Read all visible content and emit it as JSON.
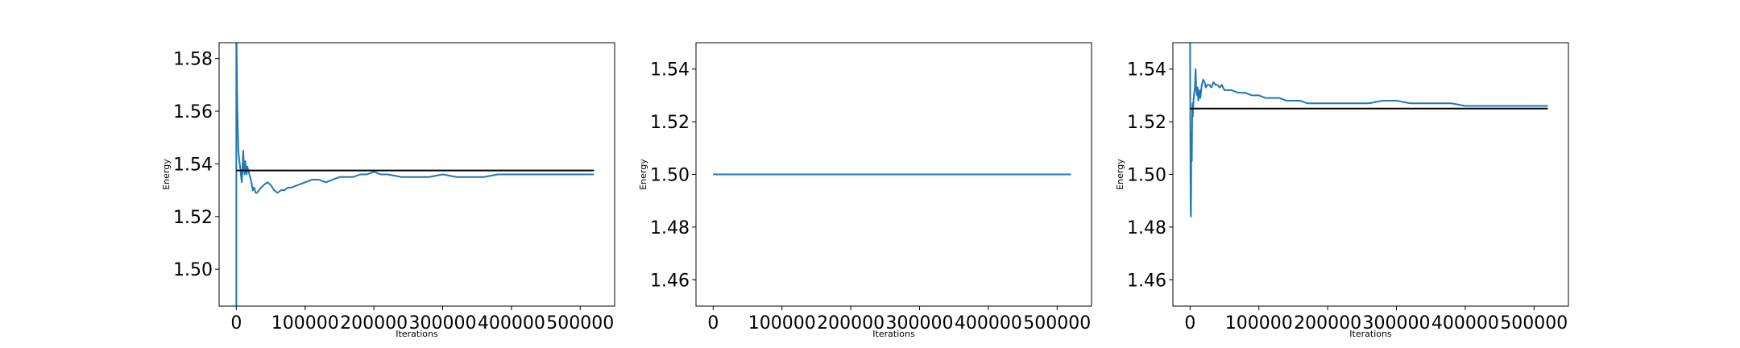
{
  "chart_data": [
    {
      "type": "line",
      "xlabel": "Iterations",
      "ylabel": "Energy",
      "xlim": [
        -25000,
        550000
      ],
      "ylim": [
        1.486,
        1.586
      ],
      "xticks": [
        0,
        100000,
        200000,
        300000,
        400000,
        500000
      ],
      "xtick_labels": [
        "0",
        "100000",
        "200000",
        "300000",
        "400000",
        "500000"
      ],
      "yticks": [
        1.5,
        1.52,
        1.54,
        1.56,
        1.58
      ],
      "ytick_labels": [
        "1.50",
        "1.52",
        "1.54",
        "1.56",
        "1.58"
      ],
      "grid": false,
      "series": [
        {
          "color": "#1f77b4",
          "x": [
            0,
            0,
            400,
            800,
            1200,
            1600,
            2000,
            2500,
            3000,
            4000,
            5000,
            6000,
            7000,
            8000,
            9000,
            10000,
            11000,
            12000,
            13000,
            14000,
            15000,
            16000,
            18000,
            20000,
            22000,
            24000,
            26000,
            28000,
            30000,
            33000,
            36000,
            40000,
            45000,
            50000,
            55000,
            60000,
            65000,
            70000,
            75000,
            80000,
            90000,
            100000,
            110000,
            120000,
            130000,
            140000,
            150000,
            160000,
            170000,
            180000,
            190000,
            200000,
            210000,
            220000,
            240000,
            260000,
            280000,
            300000,
            320000,
            340000,
            360000,
            380000,
            400000,
            420000,
            440000,
            460000,
            480000,
            500000,
            520000
          ],
          "y": [
            1.486,
            1.586,
            1.586,
            1.575,
            1.566,
            1.56,
            1.555,
            1.55,
            1.545,
            1.542,
            1.54,
            1.538,
            1.535,
            1.533,
            1.538,
            1.545,
            1.54,
            1.536,
            1.541,
            1.538,
            1.536,
            1.539,
            1.537,
            1.535,
            1.533,
            1.53,
            1.531,
            1.529,
            1.529,
            1.53,
            1.531,
            1.532,
            1.533,
            1.532,
            1.53,
            1.529,
            1.53,
            1.53,
            1.531,
            1.531,
            1.532,
            1.533,
            1.534,
            1.534,
            1.533,
            1.534,
            1.535,
            1.535,
            1.535,
            1.536,
            1.536,
            1.537,
            1.536,
            1.536,
            1.535,
            1.535,
            1.535,
            1.536,
            1.535,
            1.535,
            1.535,
            1.536,
            1.536,
            1.536,
            1.536,
            1.536,
            1.536,
            1.536,
            1.536
          ]
        },
        {
          "color": "#000000",
          "x": [
            0,
            520000
          ],
          "y": [
            1.5375,
            1.5375
          ]
        }
      ]
    },
    {
      "type": "line",
      "xlabel": "Iterations",
      "ylabel": "Energy",
      "xlim": [
        -25000,
        550000
      ],
      "ylim": [
        1.45,
        1.55
      ],
      "xticks": [
        0,
        100000,
        200000,
        300000,
        400000,
        500000
      ],
      "xtick_labels": [
        "0",
        "100000",
        "200000",
        "300000",
        "400000",
        "500000"
      ],
      "yticks": [
        1.46,
        1.48,
        1.5,
        1.52,
        1.54
      ],
      "ytick_labels": [
        "1.46",
        "1.48",
        "1.50",
        "1.52",
        "1.54"
      ],
      "grid": false,
      "series": [
        {
          "color": "#000000",
          "x": [
            0,
            520000
          ],
          "y": [
            1.5,
            1.5
          ]
        },
        {
          "color": "#1f77b4",
          "x": [
            0,
            520000
          ],
          "y": [
            1.5,
            1.5
          ]
        }
      ]
    },
    {
      "type": "line",
      "xlabel": "Iterations",
      "ylabel": "Energy",
      "xlim": [
        -25000,
        550000
      ],
      "ylim": [
        1.45,
        1.55
      ],
      "xticks": [
        0,
        100000,
        200000,
        300000,
        400000,
        500000
      ],
      "xtick_labels": [
        "0",
        "100000",
        "200000",
        "300000",
        "400000",
        "500000"
      ],
      "yticks": [
        1.46,
        1.48,
        1.5,
        1.52,
        1.54
      ],
      "ytick_labels": [
        "1.46",
        "1.48",
        "1.50",
        "1.52",
        "1.54"
      ],
      "grid": false,
      "series": [
        {
          "color": "#1f77b4",
          "x": [
            0,
            0,
            300,
            600,
            900,
            1200,
            1500,
            1800,
            2100,
            2500,
            3000,
            3500,
            4000,
            5000,
            6000,
            7000,
            8000,
            9000,
            10000,
            11000,
            12000,
            13000,
            14000,
            15000,
            17000,
            19000,
            21000,
            23000,
            25000,
            28000,
            31000,
            34000,
            37000,
            40000,
            43000,
            46000,
            50000,
            55000,
            60000,
            70000,
            80000,
            90000,
            100000,
            110000,
            120000,
            130000,
            140000,
            150000,
            160000,
            170000,
            180000,
            190000,
            200000,
            220000,
            240000,
            260000,
            280000,
            300000,
            320000,
            340000,
            360000,
            380000,
            400000,
            420000,
            440000,
            460000,
            480000,
            500000,
            520000
          ],
          "y": [
            1.55,
            1.55,
            1.52,
            1.5,
            1.485,
            1.484,
            1.495,
            1.515,
            1.512,
            1.505,
            1.52,
            1.527,
            1.522,
            1.528,
            1.531,
            1.533,
            1.54,
            1.532,
            1.53,
            1.533,
            1.528,
            1.53,
            1.532,
            1.529,
            1.534,
            1.536,
            1.535,
            1.533,
            1.534,
            1.534,
            1.533,
            1.535,
            1.534,
            1.534,
            1.533,
            1.534,
            1.532,
            1.532,
            1.532,
            1.531,
            1.531,
            1.53,
            1.53,
            1.529,
            1.529,
            1.529,
            1.528,
            1.528,
            1.528,
            1.527,
            1.527,
            1.527,
            1.527,
            1.527,
            1.527,
            1.527,
            1.528,
            1.528,
            1.527,
            1.527,
            1.527,
            1.527,
            1.526,
            1.526,
            1.526,
            1.526,
            1.526,
            1.526,
            1.526
          ]
        },
        {
          "color": "#000000",
          "x": [
            0,
            520000
          ],
          "y": [
            1.525,
            1.525
          ]
        }
      ]
    }
  ]
}
